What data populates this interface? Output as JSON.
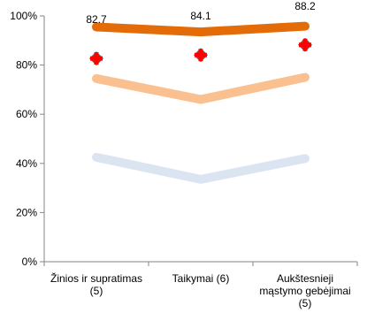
{
  "chart_data": {
    "type": "line",
    "categories": [
      [
        "Žinios ir supratimas",
        "(5)"
      ],
      [
        "Taikymai (6)"
      ],
      [
        "Aukštesnieji",
        "mąstymo gebėjimai",
        "(5)"
      ]
    ],
    "y_ticks": [
      "0%",
      "20%",
      "40%",
      "60%",
      "80%",
      "100%"
    ],
    "ylim": [
      0,
      100
    ],
    "grid": false,
    "series": [
      {
        "values": [
          95.5,
          93.5,
          95.8
        ],
        "color": "#e36c09"
      },
      {
        "values": [
          74.5,
          66,
          75
        ],
        "color": "#fac090"
      },
      {
        "values": [
          42.5,
          33.5,
          42
        ],
        "color": "#dbe5f1"
      }
    ],
    "points": {
      "values": [
        82.7,
        84.1,
        88.2
      ],
      "labels": [
        "82.7",
        "84.1",
        "88.2"
      ],
      "marker_fill": "#5f5f5f",
      "cross_color": "#ff0000"
    }
  }
}
